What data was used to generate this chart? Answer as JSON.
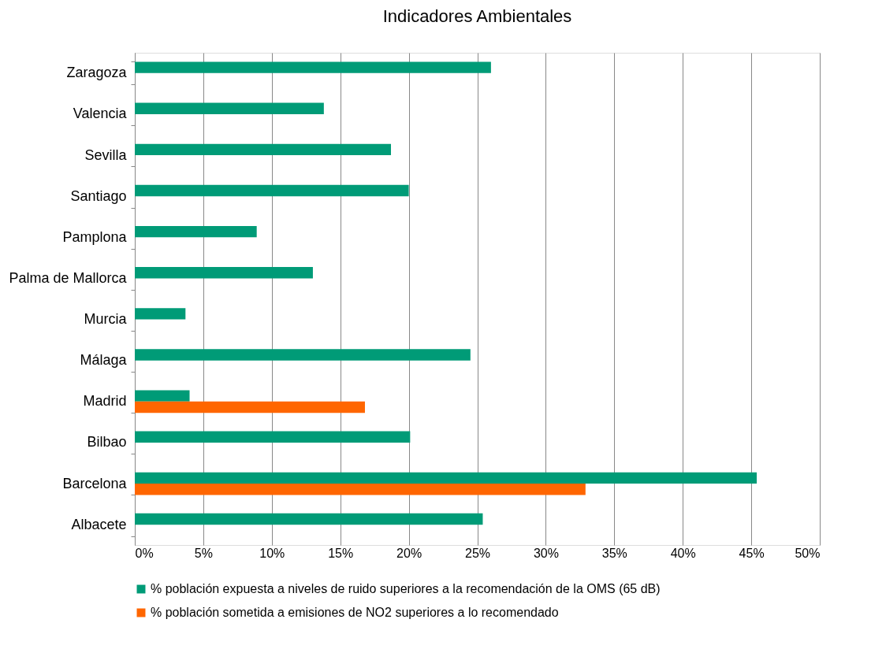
{
  "chart_data": {
    "type": "bar",
    "orientation": "horizontal",
    "title": "Indicadores Ambientales",
    "categories": [
      "Zaragoza",
      "Valencia",
      "Sevilla",
      "Santiago",
      "Pamplona",
      "Palma de Mallorca",
      "Murcia",
      "Málaga",
      "Madrid",
      "Bilbao",
      "Barcelona",
      "Albacete"
    ],
    "series": [
      {
        "name": "% población expuesta a niveles de ruido superiores a la recomendación de la OMS (65 dB)",
        "color": "#009b77",
        "values": [
          26.0,
          13.8,
          18.7,
          20.0,
          8.9,
          13.0,
          3.7,
          24.5,
          4.0,
          20.1,
          45.4,
          25.4
        ]
      },
      {
        "name": "% población sometida a emisiones de NO2 superiores a lo recomendado",
        "color": "#ff6600",
        "values": [
          null,
          null,
          null,
          null,
          null,
          null,
          null,
          null,
          16.8,
          null,
          32.9,
          null
        ]
      }
    ],
    "xlim": [
      0,
      50
    ],
    "xticks": [
      {
        "value": 0,
        "label": "0%"
      },
      {
        "value": 5,
        "label": "5%"
      },
      {
        "value": 10,
        "label": "10%"
      },
      {
        "value": 15,
        "label": "15%"
      },
      {
        "value": 20,
        "label": "20%"
      },
      {
        "value": 25,
        "label": "25%"
      },
      {
        "value": 30,
        "label": "30%"
      },
      {
        "value": 35,
        "label": "35%"
      },
      {
        "value": 40,
        "label": "40%"
      },
      {
        "value": 45,
        "label": "45%"
      },
      {
        "value": 50,
        "label": "50%"
      }
    ],
    "grid": "x",
    "legend": "bottom"
  }
}
